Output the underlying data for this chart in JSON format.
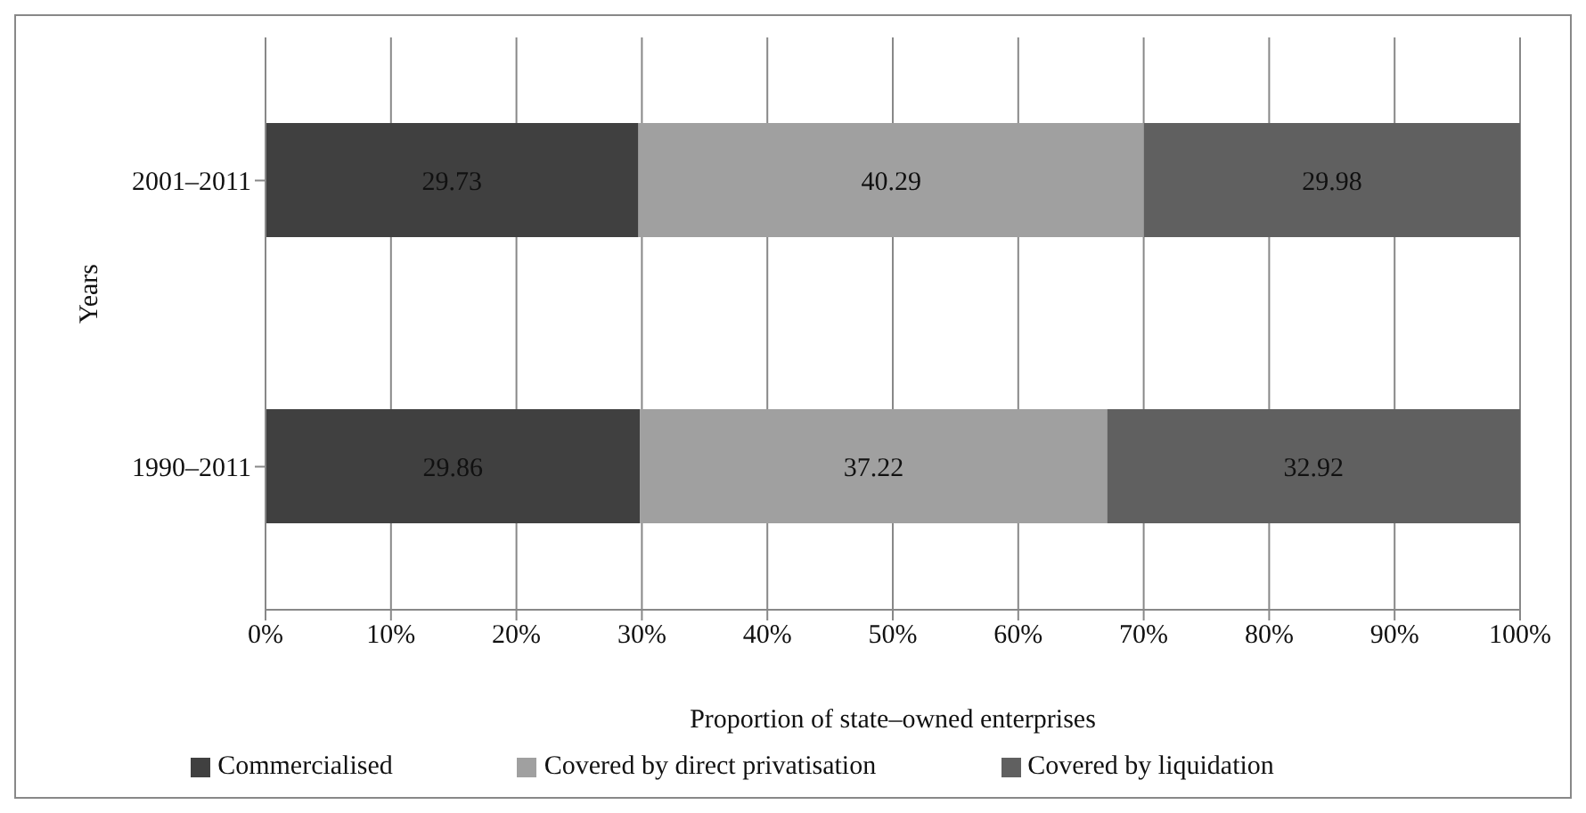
{
  "chart_data": {
    "type": "bar",
    "orientation": "horizontal",
    "stacked": true,
    "xlabel": "Proportion of state–owned enterprises",
    "ylabel": "Years",
    "categories": [
      "2001–2011",
      "1990–2011"
    ],
    "series": [
      {
        "name": "Commercialised",
        "color": "#404040",
        "values": [
          29.73,
          29.86
        ]
      },
      {
        "name": "Covered by direct privatisation",
        "color": "#a0a0a0",
        "values": [
          40.29,
          37.22
        ]
      },
      {
        "name": "Covered by liquidation",
        "color": "#606060",
        "values": [
          29.98,
          32.92
        ]
      }
    ],
    "xlim": [
      0,
      100
    ],
    "xticks": [
      {
        "value": 0,
        "label": "0%"
      },
      {
        "value": 10,
        "label": "10%"
      },
      {
        "value": 20,
        "label": "20%"
      },
      {
        "value": 30,
        "label": "30%"
      },
      {
        "value": 40,
        "label": "40%"
      },
      {
        "value": 50,
        "label": "50%"
      },
      {
        "value": 60,
        "label": "60%"
      },
      {
        "value": 70,
        "label": "70%"
      },
      {
        "value": 80,
        "label": "80%"
      },
      {
        "value": 90,
        "label": "90%"
      },
      {
        "value": 100,
        "label": "100%"
      }
    ],
    "grid": "x",
    "legend": "bottom",
    "data_labels": true
  }
}
